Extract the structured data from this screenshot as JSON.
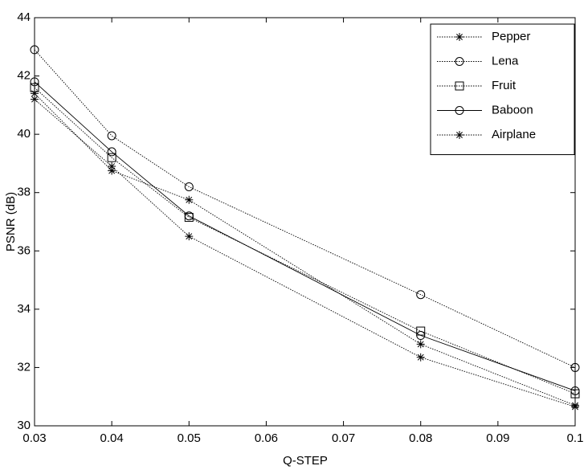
{
  "chart_data": {
    "type": "line",
    "xlabel": "Q-STEP",
    "ylabel": "PSNR (dB)",
    "x": [
      0.03,
      0.04,
      0.05,
      0.08,
      0.1
    ],
    "series": [
      {
        "name": "Pepper",
        "color": "#000000",
        "marker": "star",
        "line_style": "dotted",
        "values": [
          41.4,
          38.75,
          37.75,
          32.8,
          30.7
        ]
      },
      {
        "name": "Lena",
        "color": "#000000",
        "marker": "circle",
        "line_style": "dotted",
        "values": [
          42.9,
          39.95,
          38.2,
          34.5,
          32.0
        ]
      },
      {
        "name": "Fruit",
        "color": "#000000",
        "marker": "square",
        "line_style": "dotted",
        "values": [
          41.6,
          39.2,
          37.15,
          33.25,
          31.1
        ]
      },
      {
        "name": "Baboon",
        "color": "#000000",
        "marker": "circle",
        "line_style": "solid",
        "values": [
          41.8,
          39.4,
          37.2,
          33.1,
          31.2
        ]
      },
      {
        "name": "Airplane",
        "color": "#000000",
        "marker": "star",
        "line_style": "dotted",
        "values": [
          41.2,
          38.9,
          36.5,
          32.35,
          30.65
        ]
      }
    ],
    "xlim": [
      0.03,
      0.1
    ],
    "xticks": [
      0.03,
      0.04,
      0.05,
      0.06,
      0.07,
      0.08,
      0.09,
      0.1
    ],
    "ylim": [
      30,
      44
    ],
    "yticks": [
      30,
      32,
      34,
      36,
      38,
      40,
      42,
      44
    ],
    "grid": false,
    "legend": "top-right"
  }
}
